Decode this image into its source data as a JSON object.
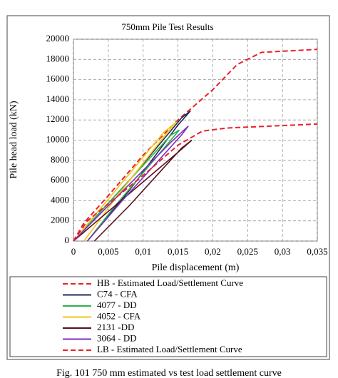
{
  "chart_data": {
    "type": "line",
    "title": "750mm Pile Test Results",
    "x_label": "Pile displacement (m)",
    "y_label": "Pile head load (kN)",
    "xlim": [
      0,
      0.035
    ],
    "xticks": [
      0,
      {
        "value": 0.005,
        "label": "0,005"
      },
      {
        "value": 0.01,
        "label": "0,01"
      },
      {
        "value": 0.015,
        "label": "0,015"
      },
      {
        "value": 0.02,
        "label": "0,02"
      },
      {
        "value": 0.025,
        "label": "0,025"
      },
      {
        "value": 0.03,
        "label": "0,03"
      },
      {
        "value": 0.035,
        "label": "0,035"
      }
    ],
    "ylim": [
      0,
      20000
    ],
    "yticks": [
      0,
      2000,
      4000,
      6000,
      8000,
      10000,
      12000,
      14000,
      16000,
      18000,
      20000
    ],
    "grid": true,
    "series": [
      {
        "name": "HB - Estimated Load/Settlement Curve",
        "color": "#e8222a",
        "dashed": true,
        "x": [
          0,
          0.0015,
          0.005,
          0.01,
          0.015,
          0.02,
          0.0235,
          0.027,
          0.035
        ],
        "values": [
          0,
          1800,
          4500,
          8500,
          12000,
          15000,
          17500,
          18700,
          19000
        ]
      },
      {
        "name": "C74 - CFA",
        "color": "#1f2a5a",
        "dashed": false,
        "x": [
          0,
          0.008,
          0.0155,
          0.0168,
          0.015,
          0.008,
          0.002
        ],
        "values": [
          0,
          6000,
          12200,
          12900,
          11500,
          5000,
          0
        ]
      },
      {
        "name": "4077 - DD",
        "color": "#2fb24a",
        "dashed": false,
        "x": [
          0,
          0.014,
          0.0152,
          0.013,
          0.006,
          0.002
        ],
        "values": [
          0,
          10500,
          11000,
          9200,
          3500,
          0
        ]
      },
      {
        "name": "4052 - CFA",
        "color": "#f5c518",
        "dashed": false,
        "x": [
          0,
          0.013,
          0.0148,
          0.0135,
          0.006,
          0.0015
        ],
        "values": [
          0,
          10800,
          11800,
          10800,
          4200,
          0
        ]
      },
      {
        "name": "2131 -DD",
        "color": "#5a1020",
        "dashed": false,
        "x": [
          0,
          0.015,
          0.017,
          0.0155,
          0.008,
          0.003
        ],
        "values": [
          0,
          8800,
          10000,
          9200,
          3500,
          0
        ]
      },
      {
        "name": "3064 - DD",
        "color": "#7a2fc0",
        "dashed": false,
        "x": [
          0,
          0.014,
          0.0165,
          0.0155,
          0.007,
          0.002
        ],
        "values": [
          0,
          9800,
          11400,
          10500,
          4000,
          0
        ]
      },
      {
        "name": "LB - Estimated Load/Settlement Curve",
        "color": "#e8222a",
        "dashed": true,
        "x": [
          0,
          0.002,
          0.01,
          0.015,
          0.0185,
          0.022,
          0.035
        ],
        "values": [
          0,
          2000,
          6500,
          9500,
          10900,
          11200,
          11600
        ]
      }
    ],
    "caption": "Fig. 101 750 mm estimated vs test load settlement curve"
  }
}
